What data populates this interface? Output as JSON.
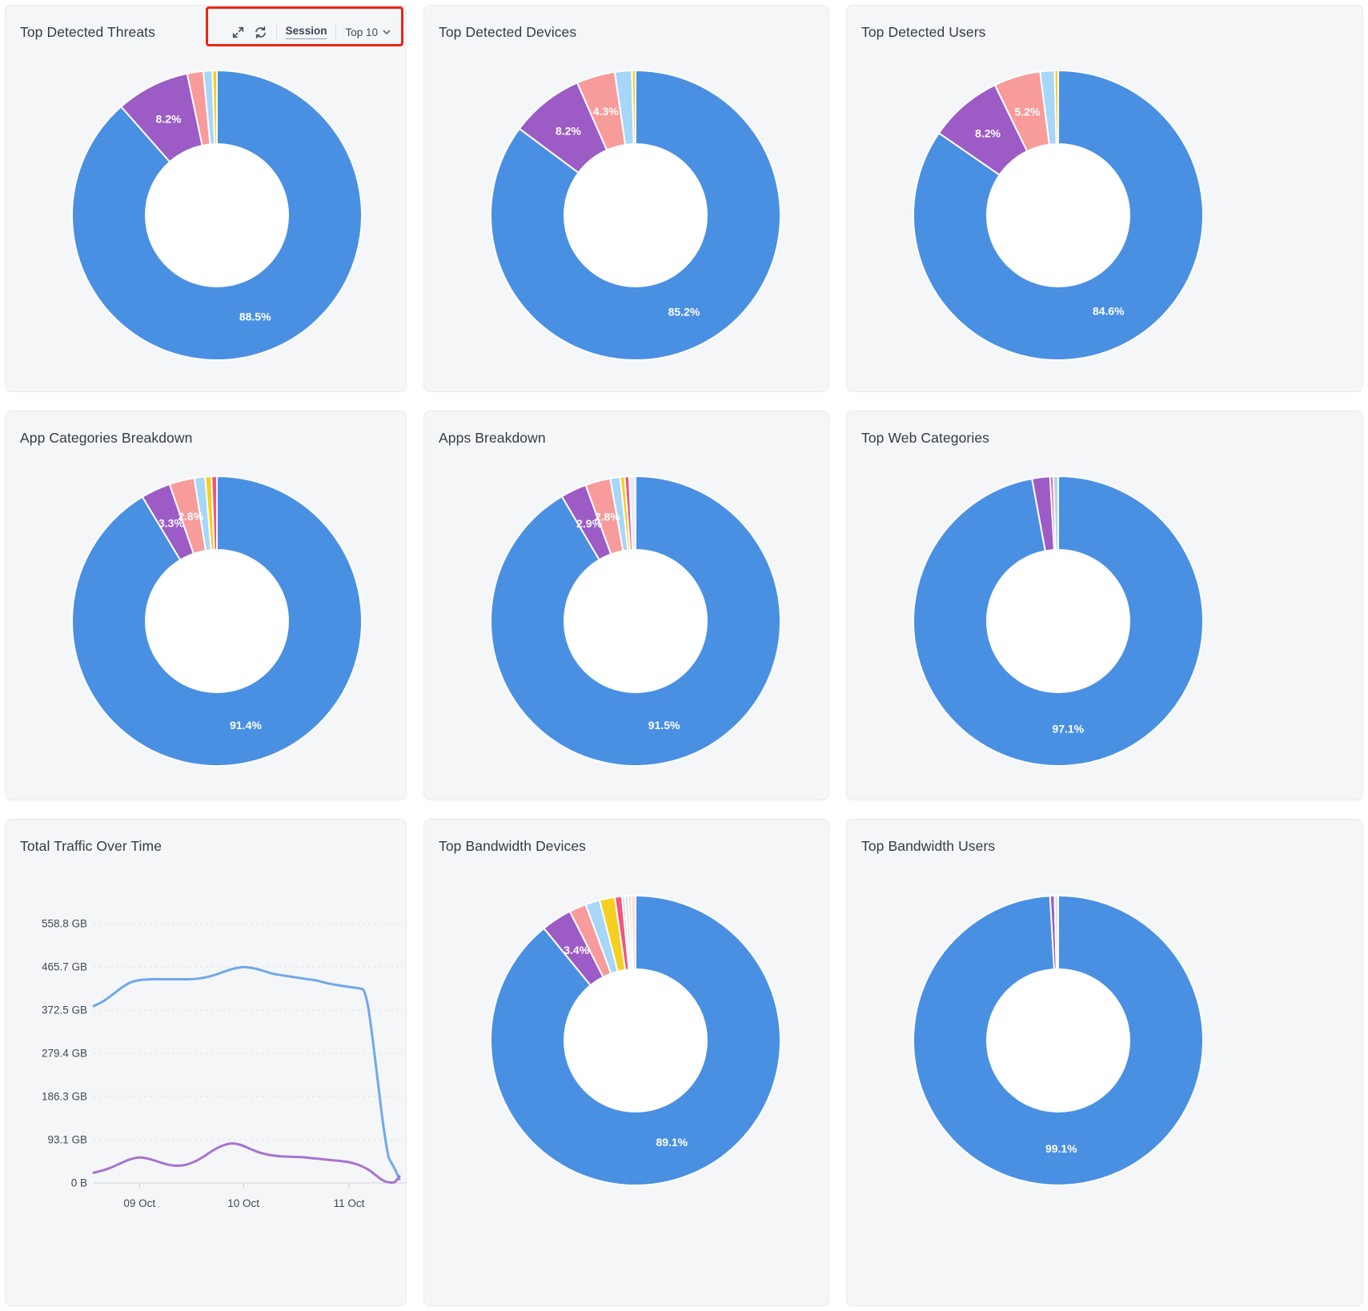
{
  "annotation": {
    "color": "#EC2414"
  },
  "palette": {
    "blue": "#4A90E2",
    "purple": "#9D5BC6",
    "salmon": "#F89B9B",
    "light_blue": "#A6D7F8",
    "yellow": "#F5D021",
    "crimson": "#F2557E",
    "mint": "#A8DFD3",
    "pale_gray": "#DCE4EC",
    "orange": "#F8C98E",
    "pale_pink": "#F6DCE4",
    "line_blue": "#6FA8EC",
    "line_purple": "#A873D0"
  },
  "toolbar": {
    "icons": [
      "expand-icon",
      "refresh-icon",
      "chevron-down-icon"
    ],
    "view_label": "Session",
    "limit_label": "Top 10"
  },
  "panels": [
    {
      "title": "Top Detected Threats",
      "chart": 0,
      "has_toolbar": true,
      "has_annotation": true
    },
    {
      "title": "Top Detected Devices",
      "chart": 1
    },
    {
      "title": "Top Detected Users",
      "chart": 2
    },
    {
      "title": "App Categories Breakdown",
      "chart": 3
    },
    {
      "title": "Apps Breakdown",
      "chart": 4
    },
    {
      "title": "Top Web Categories",
      "chart": 5
    },
    {
      "title": "Total Traffic Over Time",
      "chart": 6
    },
    {
      "title": "Top Bandwidth Devices",
      "chart": 7
    },
    {
      "title": "Top Bandwidth Users",
      "chart": 8
    }
  ],
  "chart_data": [
    {
      "type": "pie",
      "title": "Top Detected Threats",
      "segments": [
        {
          "value": 88.5,
          "color": "#4A90E2",
          "label": "88.5%"
        },
        {
          "value": 8.2,
          "color": "#9D5BC6",
          "label": "8.2%"
        },
        {
          "value": 1.8,
          "color": "#F89B9B"
        },
        {
          "value": 1.0,
          "color": "#A6D7F8"
        },
        {
          "value": 0.5,
          "color": "#F5D021"
        }
      ]
    },
    {
      "type": "pie",
      "title": "Top Detected Devices",
      "segments": [
        {
          "value": 85.2,
          "color": "#4A90E2",
          "label": "85.2%"
        },
        {
          "value": 8.2,
          "color": "#9D5BC6",
          "label": "8.2%"
        },
        {
          "value": 4.3,
          "color": "#F89B9B",
          "label": "4.3%"
        },
        {
          "value": 1.9,
          "color": "#A6D7F8"
        },
        {
          "value": 0.4,
          "color": "#F5D021"
        }
      ]
    },
    {
      "type": "pie",
      "title": "Top Detected Users",
      "segments": [
        {
          "value": 84.6,
          "color": "#4A90E2",
          "label": "84.6%"
        },
        {
          "value": 8.2,
          "color": "#9D5BC6",
          "label": "8.2%"
        },
        {
          "value": 5.2,
          "color": "#F89B9B",
          "label": "5.2%"
        },
        {
          "value": 1.6,
          "color": "#A6D7F8"
        },
        {
          "value": 0.4,
          "color": "#F5D021"
        }
      ]
    },
    {
      "type": "pie",
      "title": "App Categories Breakdown",
      "segments": [
        {
          "value": 91.4,
          "color": "#4A90E2",
          "label": "91.4%"
        },
        {
          "value": 3.3,
          "color": "#9D5BC6",
          "label": "3.3%"
        },
        {
          "value": 2.8,
          "color": "#F89B9B",
          "label": "2.8%"
        },
        {
          "value": 1.2,
          "color": "#A6D7F8"
        },
        {
          "value": 0.7,
          "color": "#F5D021"
        },
        {
          "value": 0.6,
          "color": "#F2557E"
        }
      ]
    },
    {
      "type": "pie",
      "title": "Apps Breakdown",
      "segments": [
        {
          "value": 91.5,
          "color": "#4A90E2",
          "label": "91.5%"
        },
        {
          "value": 2.9,
          "color": "#9D5BC6",
          "label": "2.9%"
        },
        {
          "value": 2.8,
          "color": "#F89B9B",
          "label": "2.8%"
        },
        {
          "value": 1.1,
          "color": "#A6D7F8"
        },
        {
          "value": 0.5,
          "color": "#F5D021"
        },
        {
          "value": 0.5,
          "color": "#F2557E"
        },
        {
          "value": 0.7,
          "color": "#E8EDF2"
        }
      ]
    },
    {
      "type": "pie",
      "title": "Top Web Categories",
      "segments": [
        {
          "value": 97.1,
          "color": "#4A90E2",
          "label": "97.1%"
        },
        {
          "value": 2.0,
          "color": "#9D5BC6"
        },
        {
          "value": 0.35,
          "color": "#F2557E"
        },
        {
          "value": 0.55,
          "color": "#A6D7F8"
        }
      ]
    },
    {
      "type": "line",
      "title": "Total Traffic Over Time",
      "y_ticks": [
        "0 B",
        "93.1 GB",
        "186.3 GB",
        "279.4 GB",
        "372.5 GB",
        "465.7 GB",
        "558.8 GB"
      ],
      "y_max_gb": 558.8,
      "grid": true,
      "x_ticks": [
        {
          "label": "09 Oct",
          "pos": 0.15
        },
        {
          "label": "10 Oct",
          "pos": 0.49
        },
        {
          "label": "11 Oct",
          "pos": 0.835
        }
      ],
      "series": [
        {
          "name": "series-blue",
          "color": "#6FA8EC",
          "points": [
            [
              0,
              381
            ],
            [
              0.03,
              391
            ],
            [
              0.06,
              405
            ],
            [
              0.09,
              420
            ],
            [
              0.12,
              432
            ],
            [
              0.15,
              437
            ],
            [
              0.19,
              439
            ],
            [
              0.23,
              439
            ],
            [
              0.27,
              439
            ],
            [
              0.31,
              439
            ],
            [
              0.35,
              441
            ],
            [
              0.39,
              447
            ],
            [
              0.43,
              456
            ],
            [
              0.46,
              462
            ],
            [
              0.49,
              465
            ],
            [
              0.52,
              463
            ],
            [
              0.55,
              458
            ],
            [
              0.58,
              452
            ],
            [
              0.61,
              448
            ],
            [
              0.64,
              445
            ],
            [
              0.67,
              442
            ],
            [
              0.7,
              439
            ],
            [
              0.73,
              436
            ],
            [
              0.76,
              431
            ],
            [
              0.79,
              427
            ],
            [
              0.82,
              424
            ],
            [
              0.85,
              421
            ],
            [
              0.87,
              419
            ],
            [
              0.885,
              412
            ],
            [
              0.9,
              370
            ],
            [
              0.92,
              270
            ],
            [
              0.94,
              160
            ],
            [
              0.955,
              90
            ],
            [
              0.965,
              55
            ],
            [
              0.975,
              42
            ],
            [
              0.985,
              30
            ],
            [
              1,
              8
            ]
          ]
        },
        {
          "name": "series-purple",
          "color": "#A873D0",
          "points": [
            [
              0,
              22
            ],
            [
              0.03,
              27
            ],
            [
              0.06,
              34
            ],
            [
              0.09,
              43
            ],
            [
              0.12,
              51
            ],
            [
              0.15,
              55
            ],
            [
              0.18,
              52
            ],
            [
              0.21,
              46
            ],
            [
              0.24,
              40
            ],
            [
              0.27,
              37
            ],
            [
              0.3,
              39
            ],
            [
              0.33,
              46
            ],
            [
              0.36,
              57
            ],
            [
              0.39,
              70
            ],
            [
              0.42,
              80
            ],
            [
              0.45,
              85
            ],
            [
              0.48,
              82
            ],
            [
              0.51,
              74
            ],
            [
              0.54,
              66
            ],
            [
              0.57,
              61
            ],
            [
              0.6,
              58
            ],
            [
              0.63,
              57
            ],
            [
              0.66,
              56
            ],
            [
              0.69,
              55
            ],
            [
              0.72,
              53
            ],
            [
              0.75,
              51
            ],
            [
              0.78,
              49
            ],
            [
              0.81,
              47
            ],
            [
              0.84,
              44
            ],
            [
              0.87,
              38
            ],
            [
              0.9,
              28
            ],
            [
              0.92,
              18
            ],
            [
              0.94,
              8
            ],
            [
              0.955,
              3
            ],
            [
              0.97,
              1
            ],
            [
              0.985,
              2
            ],
            [
              1,
              14
            ]
          ]
        }
      ]
    },
    {
      "type": "pie",
      "title": "Top Bandwidth Devices",
      "segments": [
        {
          "value": 89.1,
          "color": "#4A90E2",
          "label": "89.1%"
        },
        {
          "value": 3.4,
          "color": "#9D5BC6",
          "label": "3.4%"
        },
        {
          "value": 1.9,
          "color": "#F89B9B"
        },
        {
          "value": 1.6,
          "color": "#A6D7F8"
        },
        {
          "value": 1.7,
          "color": "#F5D021"
        },
        {
          "value": 0.8,
          "color": "#F2557E"
        },
        {
          "value": 0.3,
          "color": "#A8DFD3"
        },
        {
          "value": 0.4,
          "color": "#DCE4EC"
        },
        {
          "value": 0.3,
          "color": "#F8C98E"
        },
        {
          "value": 0.5,
          "color": "#F6DCE4"
        }
      ]
    },
    {
      "type": "pie",
      "title": "Top Bandwidth Users",
      "segments": [
        {
          "value": 99.1,
          "color": "#4A90E2",
          "label": "99.1%"
        },
        {
          "value": 0.5,
          "color": "#9D5BC6"
        },
        {
          "value": 0.4,
          "color": "#DCE4EC"
        }
      ]
    }
  ]
}
